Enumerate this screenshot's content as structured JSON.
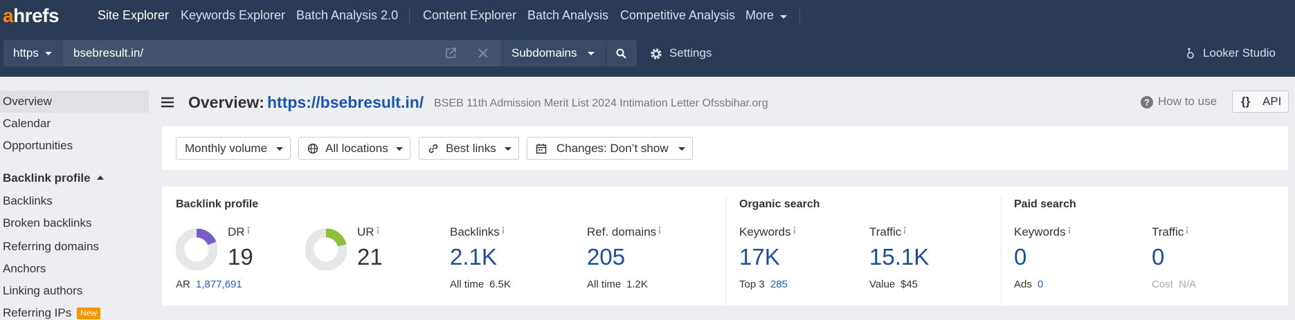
{
  "nav": {
    "logo": "ahrefs",
    "items": [
      "Site Explorer",
      "Keywords Explorer",
      "Batch Analysis 2.0",
      "Content Explorer",
      "Batch Analysis",
      "Competitive Analysis",
      "More"
    ]
  },
  "toolbar": {
    "protocol": "https",
    "url": "bsebresult.in/",
    "scope": "Subdomains",
    "settings": "Settings",
    "looker": "Looker Studio"
  },
  "sidebar": {
    "top": [
      "Overview",
      "Calendar",
      "Opportunities"
    ],
    "section": "Backlink profile",
    "items": [
      "Backlinks",
      "Broken backlinks",
      "Referring domains",
      "Anchors",
      "Linking authors",
      "Referring IPs"
    ],
    "badge": "New"
  },
  "header": {
    "title": "Overview:",
    "url": "https://bsebresult.in/",
    "subtitle": "BSEB 11th Admission Merit List 2024 Intimation Letter Ofssbihar.org",
    "help": "How to use",
    "api_icon": "{}",
    "api": "API"
  },
  "filters": [
    "Monthly volume",
    "All locations",
    "Best links",
    "Changes: Don’t show"
  ],
  "sections": [
    {
      "title": "Backlink profile",
      "metrics": [
        {
          "label": "DR",
          "value": 19,
          "gauge": "#7a5cc9",
          "sub_label": "AR",
          "sub_value": "1,877,691",
          "sub_color": "#2461c2"
        },
        {
          "label": "UR",
          "value": 21,
          "gauge": "#8cc03c"
        },
        {
          "label": "Backlinks",
          "value": "2.1K",
          "sub_label": "All time",
          "sub_value": "6.5K",
          "sub_color": "#333333"
        },
        {
          "label": "Ref. domains",
          "value": 205,
          "sub_label": "All time",
          "sub_value": "1.2K",
          "sub_color": "#333333"
        }
      ]
    },
    {
      "title": "Organic search",
      "metrics": [
        {
          "label": "Keywords",
          "value": "17K",
          "sub_label": "Top 3",
          "sub_value": 285,
          "sub_color": "#2461c2"
        },
        {
          "label": "Traffic",
          "value": "15.1K",
          "sub_label": "Value",
          "sub_value": "$45",
          "sub_color": "#333333"
        }
      ]
    },
    {
      "title": "Paid search",
      "metrics": [
        {
          "label": "Keywords",
          "value": 0,
          "sub_label": "Ads",
          "sub_value": 0,
          "sub_color": "#2461c2"
        },
        {
          "label": "Traffic",
          "value": 0,
          "sub_label": "Cost",
          "sub_value": "N/A",
          "sub_color": "#aaaaaa",
          "sub_label_color": "#aaaaaa"
        }
      ]
    }
  ]
}
